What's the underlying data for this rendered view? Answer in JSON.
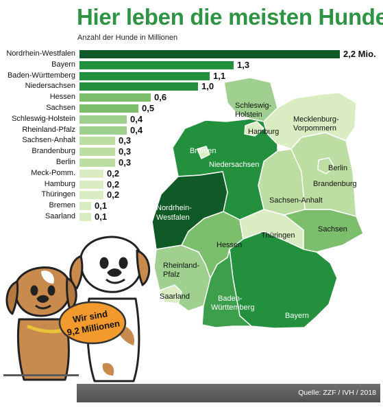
{
  "header": {
    "title": "Hier leben die meisten Hunde",
    "subtitle": "Anzahl der Hunde in Millionen"
  },
  "chart_data": {
    "type": "bar",
    "orientation": "horizontal",
    "title": "Hier leben die meisten Hunde",
    "subtitle": "Anzahl der Hunde in Millionen",
    "xlabel": "",
    "ylabel": "",
    "categories": [
      "Nordrhein-Westfalen",
      "Bayern",
      "Baden-Württemberg",
      "Niedersachsen",
      "Hessen",
      "Sachsen",
      "Schleswig-Holstein",
      "Rheinland-Pfalz",
      "Sachsen-Anhalt",
      "Brandenburg",
      "Berlin",
      "Meck-Pomm.",
      "Hamburg",
      "Thüringen",
      "Bremen",
      "Saarland"
    ],
    "values": [
      2.2,
      1.3,
      1.1,
      1.0,
      0.6,
      0.5,
      0.4,
      0.4,
      0.3,
      0.3,
      0.3,
      0.2,
      0.2,
      0.2,
      0.1,
      0.1
    ],
    "value_labels": [
      "2,2 Mio.",
      "1,3",
      "1,1",
      "1,0",
      "0,6",
      "0,5",
      "0,4",
      "0,4",
      "0,3",
      "0,3",
      "0,3",
      "0,2",
      "0,2",
      "0,2",
      "0,1",
      "0,1"
    ],
    "xlim": [
      0,
      2.2
    ],
    "grid": false,
    "legend": "none",
    "colors": {
      "2.2": "#0f5a26",
      "1.3": "#23903d",
      "1.1": "#23903d",
      "1.0": "#23903d",
      "0.6": "#7bbe6c",
      "0.5": "#7bbe6c",
      "0.4": "#9fd08f",
      "0.3": "#bcdea3",
      "0.2": "#d9ecc2",
      "0.1": "#d9ecc2"
    }
  },
  "map": {
    "labels": {
      "schleswig_holstein": [
        "Schleswig-",
        "Holstein"
      ],
      "hamburg": "Hamburg",
      "mecklenburg": [
        "Mecklenburg-",
        "Vorpommern"
      ],
      "bremen": "Bremen",
      "niedersachsen": "Niedersachsen",
      "berlin": "Berlin",
      "brandenburg": "Brandenburg",
      "sachsen_anhalt": "Sachsen-Anhalt",
      "nrw": [
        "Nordrhein-",
        "Westfalen"
      ],
      "sachsen": "Sachsen",
      "thueringen": "Thüringen",
      "hessen": "Hessen",
      "rheinland_pfalz": [
        "Rheinland-",
        "Pfalz"
      ],
      "saarland": "Saarland",
      "baden_wuerttemberg": [
        "Baden-",
        "Württemberg"
      ],
      "bayern": "Bayern"
    }
  },
  "badge": {
    "line1": "Wir sind",
    "line2": "9,2 Millionen"
  },
  "footer": {
    "source": "Quelle: ZZF / IVH / 2018"
  }
}
